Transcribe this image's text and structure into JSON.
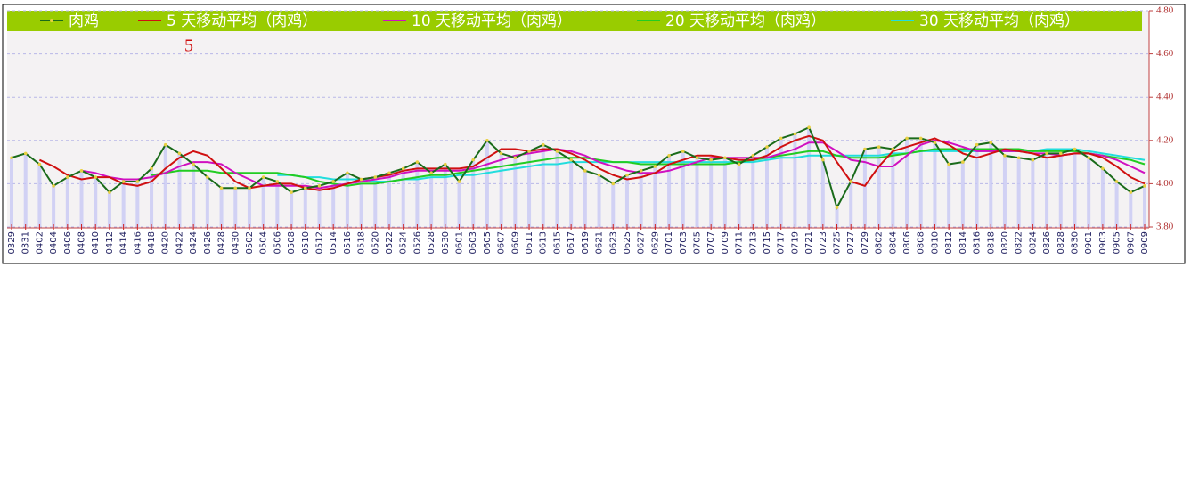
{
  "chart_data": {
    "type": "line",
    "annotation": "5",
    "categories": [
      "0329",
      "0331",
      "0402",
      "0404",
      "0406",
      "0408",
      "0410",
      "0412",
      "0414",
      "0416",
      "0418",
      "0420",
      "0422",
      "0424",
      "0426",
      "0428",
      "0430",
      "0502",
      "0504",
      "0506",
      "0508",
      "0510",
      "0512",
      "0514",
      "0516",
      "0518",
      "0520",
      "0522",
      "0524",
      "0526",
      "0528",
      "0530",
      "0601",
      "0603",
      "0605",
      "0607",
      "0609",
      "0611",
      "0613",
      "0615",
      "0617",
      "0619",
      "0621",
      "0623",
      "0625",
      "0627",
      "0629",
      "0701",
      "0703",
      "0705",
      "0707",
      "0709",
      "0711",
      "0713",
      "0715",
      "0717",
      "0719",
      "0721",
      "0723",
      "0725",
      "0727",
      "0729",
      "0802",
      "0804",
      "0806",
      "0808",
      "0810",
      "0812",
      "0814",
      "0816",
      "0818",
      "0820",
      "0822",
      "0824",
      "0826",
      "0828",
      "0830",
      "0901",
      "0903",
      "0905",
      "0907",
      "0909"
    ],
    "series": [
      {
        "name": "肉鸡",
        "color": "#1a6b1a",
        "values": [
          4.12,
          4.14,
          4.09,
          3.99,
          4.03,
          4.06,
          4.03,
          3.96,
          4.01,
          4.01,
          4.07,
          4.18,
          4.14,
          4.09,
          4.03,
          3.98,
          3.98,
          3.98,
          4.03,
          4.01,
          3.96,
          3.98,
          3.99,
          4.01,
          4.05,
          4.02,
          4.03,
          4.05,
          4.07,
          4.1,
          4.05,
          4.09,
          4.01,
          4.11,
          4.2,
          4.14,
          4.12,
          4.15,
          4.18,
          4.15,
          4.11,
          4.06,
          4.04,
          4.0,
          4.04,
          4.06,
          4.08,
          4.13,
          4.15,
          4.12,
          4.11,
          4.12,
          4.09,
          4.13,
          4.17,
          4.21,
          4.23,
          4.26,
          4.11,
          3.89,
          4.01,
          4.16,
          4.17,
          4.16,
          4.21,
          4.21,
          4.19,
          4.09,
          4.1,
          4.18,
          4.19,
          4.13,
          4.12,
          4.11,
          4.14,
          4.14,
          4.16,
          4.12,
          4.07,
          4.01,
          3.96,
          3.99
        ]
      },
      {
        "name": "5 天移动平均（肉鸡）",
        "color": "#d01010",
        "values": [
          null,
          null,
          4.11,
          4.08,
          4.04,
          4.02,
          4.03,
          4.03,
          4.0,
          3.99,
          4.01,
          4.07,
          4.12,
          4.15,
          4.13,
          4.07,
          4.01,
          3.98,
          3.99,
          4.0,
          4.0,
          3.98,
          3.97,
          3.98,
          4.0,
          4.02,
          4.03,
          4.04,
          4.06,
          4.07,
          4.07,
          4.07,
          4.07,
          4.08,
          4.12,
          4.16,
          4.16,
          4.15,
          4.16,
          4.16,
          4.14,
          4.11,
          4.07,
          4.04,
          4.02,
          4.03,
          4.05,
          4.09,
          4.11,
          4.13,
          4.13,
          4.12,
          4.11,
          4.11,
          4.13,
          4.17,
          4.2,
          4.22,
          4.2,
          4.1,
          4.01,
          3.99,
          4.08,
          4.15,
          4.17,
          4.19,
          4.21,
          4.18,
          4.14,
          4.12,
          4.14,
          4.16,
          4.15,
          4.14,
          4.12,
          4.13,
          4.14,
          4.14,
          4.12,
          4.08,
          4.03,
          4.0
        ]
      },
      {
        "name": "10 天移动平均（肉鸡）",
        "color": "#d010c0",
        "values": [
          null,
          null,
          null,
          null,
          null,
          4.06,
          4.05,
          4.03,
          4.02,
          4.02,
          4.03,
          4.05,
          4.08,
          4.1,
          4.1,
          4.09,
          4.05,
          4.02,
          3.99,
          3.99,
          3.99,
          3.99,
          3.98,
          3.99,
          4.0,
          4.01,
          4.02,
          4.03,
          4.05,
          4.06,
          4.06,
          4.06,
          4.06,
          4.07,
          4.09,
          4.11,
          4.13,
          4.14,
          4.15,
          4.16,
          4.15,
          4.13,
          4.1,
          4.08,
          4.06,
          4.05,
          4.05,
          4.06,
          4.08,
          4.1,
          4.12,
          4.12,
          4.12,
          4.12,
          4.12,
          4.14,
          4.16,
          4.19,
          4.19,
          4.15,
          4.11,
          4.1,
          4.08,
          4.08,
          4.13,
          4.18,
          4.2,
          4.19,
          4.17,
          4.15,
          4.15,
          4.15,
          4.15,
          4.14,
          4.14,
          4.13,
          4.14,
          4.14,
          4.13,
          4.11,
          4.08,
          4.05
        ]
      },
      {
        "name": "20 天移动平均（肉鸡）",
        "color": "#22cc22",
        "values": [
          null,
          null,
          null,
          null,
          null,
          null,
          null,
          null,
          null,
          null,
          4.04,
          4.05,
          4.06,
          4.06,
          4.06,
          4.05,
          4.05,
          4.05,
          4.05,
          4.05,
          4.04,
          4.03,
          4.01,
          4.0,
          3.99,
          4.0,
          4.0,
          4.01,
          4.02,
          4.03,
          4.04,
          4.04,
          4.05,
          4.06,
          4.07,
          4.08,
          4.09,
          4.1,
          4.11,
          4.12,
          4.12,
          4.12,
          4.11,
          4.1,
          4.1,
          4.09,
          4.09,
          4.09,
          4.09,
          4.09,
          4.09,
          4.09,
          4.1,
          4.11,
          4.12,
          4.13,
          4.14,
          4.15,
          4.15,
          4.13,
          4.12,
          4.12,
          4.12,
          4.13,
          4.14,
          4.15,
          4.16,
          4.16,
          4.16,
          4.16,
          4.16,
          4.16,
          4.16,
          4.15,
          4.15,
          4.15,
          4.15,
          4.14,
          4.13,
          4.12,
          4.11,
          4.09
        ]
      },
      {
        "name": "30 天移动平均（肉鸡）",
        "color": "#22dddd",
        "values": [
          null,
          null,
          null,
          null,
          null,
          null,
          null,
          null,
          null,
          null,
          null,
          null,
          null,
          null,
          null,
          null,
          null,
          null,
          null,
          4.04,
          4.04,
          4.03,
          4.03,
          4.02,
          4.02,
          4.02,
          4.01,
          4.01,
          4.02,
          4.02,
          4.03,
          4.03,
          4.04,
          4.04,
          4.05,
          4.06,
          4.07,
          4.08,
          4.09,
          4.09,
          4.1,
          4.1,
          4.1,
          4.1,
          4.1,
          4.1,
          4.1,
          4.1,
          4.1,
          4.1,
          4.1,
          4.1,
          4.1,
          4.1,
          4.11,
          4.12,
          4.12,
          4.13,
          4.13,
          4.13,
          4.13,
          4.13,
          4.13,
          4.14,
          4.14,
          4.15,
          4.15,
          4.15,
          4.15,
          4.15,
          4.15,
          4.15,
          4.15,
          4.15,
          4.16,
          4.16,
          4.16,
          4.15,
          4.14,
          4.13,
          4.12,
          4.11
        ]
      }
    ],
    "ylim": [
      3.8,
      4.8
    ],
    "yticks": [
      {
        "value": 3.8,
        "label": "3.80"
      },
      {
        "value": 4.0,
        "label": "4.00"
      },
      {
        "value": 4.2,
        "label": "4.20"
      },
      {
        "value": 4.4,
        "label": "4.40"
      },
      {
        "value": 4.6,
        "label": "4.60"
      },
      {
        "value": 4.8,
        "label": "4.80"
      }
    ],
    "grid": true
  }
}
